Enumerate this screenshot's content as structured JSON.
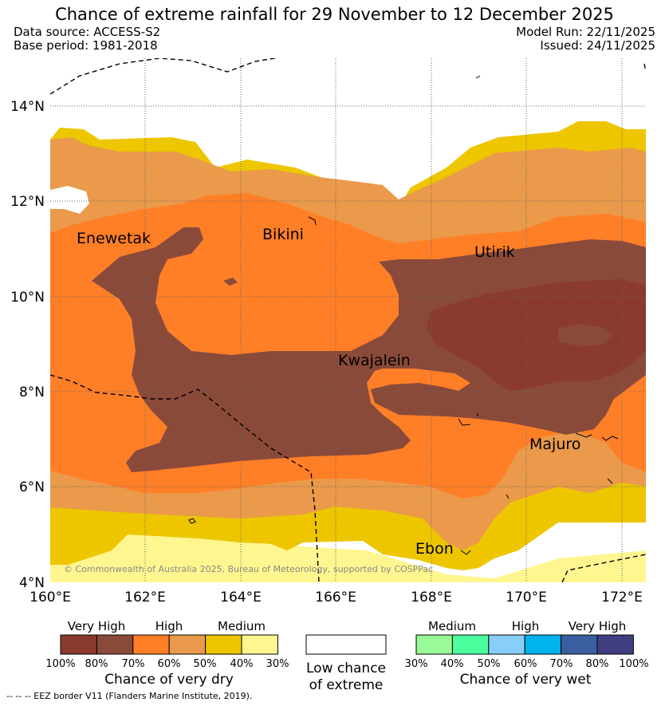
{
  "title": "Chance of extreme rainfall for 29 November to 12 December 2025",
  "meta": {
    "data_source": "Data source: ACCESS-S2",
    "base_period": "Base period: 1981-2018",
    "model_run": "Model Run: 22/11/2025",
    "issued": "Issued: 24/11/2025"
  },
  "map": {
    "x_ticks": [
      "160°E",
      "162°E",
      "164°E",
      "166°E",
      "168°E",
      "170°E",
      "172°E"
    ],
    "y_ticks": [
      "4°N",
      "6°N",
      "8°N",
      "10°N",
      "12°N",
      "14°N"
    ],
    "places": {
      "enewetak": "Enewetak",
      "bikini": "Bikini",
      "utirik": "Utirik",
      "kwajalein": "Kwajalein",
      "majuro": "Majuro",
      "ebon": "Ebon"
    },
    "copyright": "© Commonwealth of Australia 2025, Bureau of Meteorology, supported by COSPPac"
  },
  "legend": {
    "dry": {
      "headings": [
        "Very High",
        "High",
        "Medium"
      ],
      "percents": [
        "100%",
        "80%",
        "70%",
        "60%",
        "50%",
        "40%",
        "30%"
      ],
      "caption": "Chance of very dry",
      "colors": [
        "#8b3a2f",
        "#8a4a3a",
        "#ff7f27",
        "#ea9a4a",
        "#edc600",
        "#fff68f"
      ]
    },
    "low": {
      "caption_line1": "Low chance",
      "caption_line2": "of extreme"
    },
    "wet": {
      "headings": [
        "Medium",
        "High",
        "Very High"
      ],
      "percents": [
        "30%",
        "40%",
        "50%",
        "60%",
        "70%",
        "80%",
        "100%"
      ],
      "caption": "Chance of very wet",
      "colors": [
        "#98fb98",
        "#4cff9e",
        "#87cefa",
        "#00b2ee",
        "#3a5fa0",
        "#3f3f7f"
      ]
    }
  },
  "footnote": "--  --  -- EEZ border V11 (Flanders Marine Institute, 2019)."
}
